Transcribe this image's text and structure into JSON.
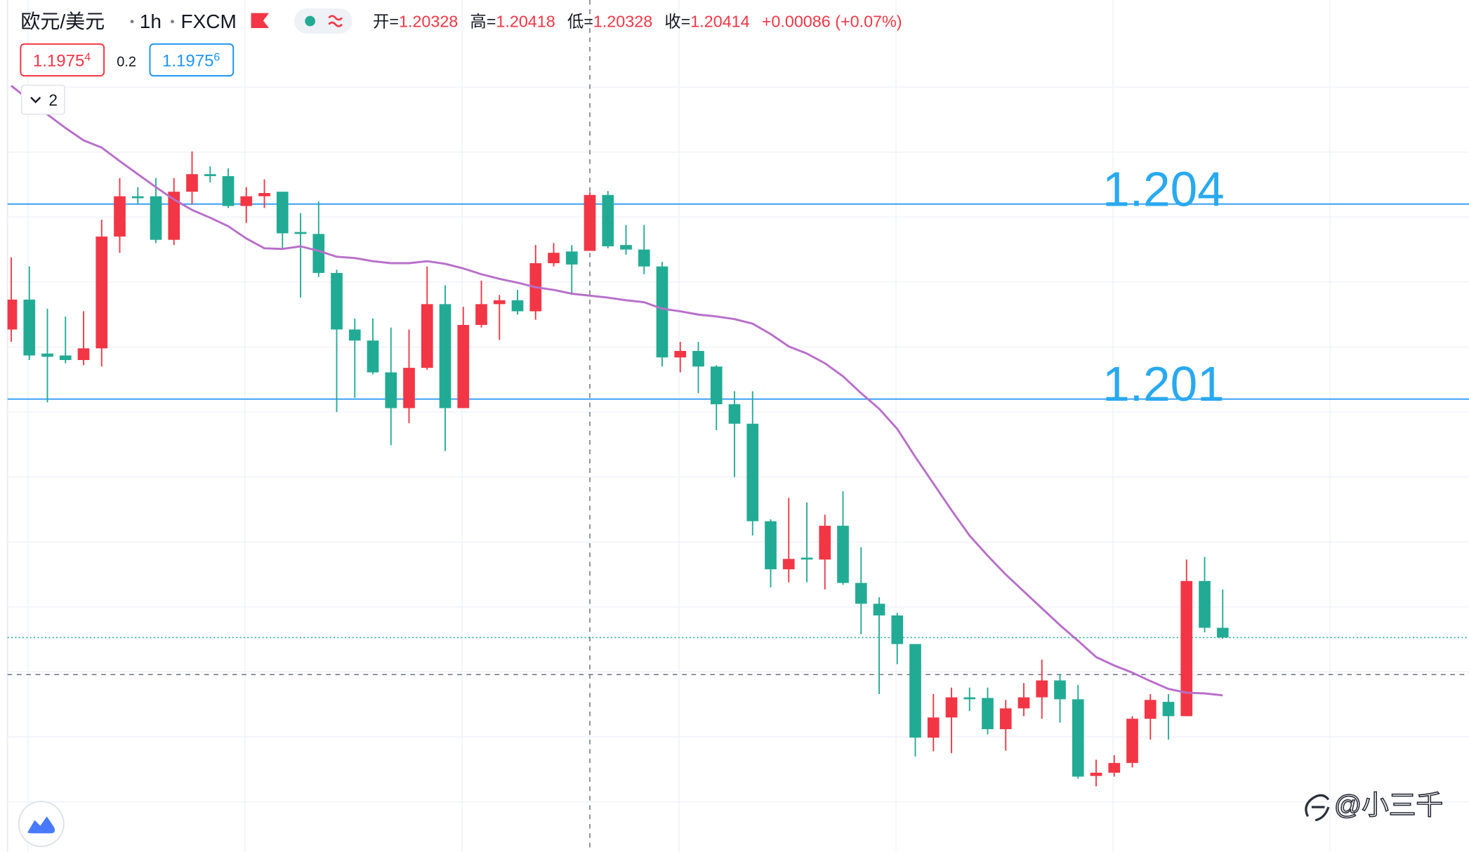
{
  "header": {
    "symbol": "欧元/美元",
    "interval": "1h",
    "source": "FXCM",
    "ohlc_labels": [
      "开=",
      "高=",
      "低=",
      "收="
    ],
    "change": "+0.00086 (+0.07%)",
    "bid": {
      "price": "1.1975",
      "pip": "4"
    },
    "spread": 0.2,
    "ask": {
      "price": "1.1975",
      "pip": "6"
    },
    "indicators_count": "2"
  },
  "watermark": "@小三千",
  "chart_data": {
    "type": "candlestick",
    "ylim": [
      1.19403,
      1.20714
    ],
    "grid": true,
    "up_color": "#f23645",
    "down_color": "#22ab94",
    "open": [
      1.20207,
      1.20253,
      1.2017,
      1.20167,
      1.2016,
      1.20178,
      1.2035,
      1.20412,
      1.20412,
      1.20345,
      1.20419,
      1.20446,
      1.20443,
      1.20397,
      1.20412,
      1.20419,
      1.20357,
      1.20354,
      1.20294,
      1.20207,
      1.2019,
      1.20141,
      1.20086,
      1.20148,
      1.20246,
      1.20086,
      1.20214,
      1.20246,
      1.20252,
      1.20235,
      1.20309,
      1.20327,
      1.20328,
      1.20414,
      1.20337,
      1.2033,
      1.20304,
      1.20164,
      1.20174,
      1.2015,
      1.20092,
      1.20062,
      1.19912,
      1.19838,
      1.19856,
      1.19853,
      1.19905,
      1.19817,
      1.19785,
      1.19767,
      1.19723,
      1.19579,
      1.1961,
      1.19641,
      1.1964,
      1.19592,
      1.19624,
      1.19641,
      1.19667,
      1.19638,
      1.1952,
      1.19525,
      1.1954,
      1.19608,
      1.19634,
      1.19612,
      1.1982,
      1.19748
    ],
    "high": [
      1.20318,
      1.20304,
      1.20239,
      1.20227,
      1.20235,
      1.20376,
      1.2044,
      1.20426,
      1.2044,
      1.2044,
      1.20481,
      1.20458,
      1.20455,
      1.20426,
      1.20438,
      1.20419,
      1.20386,
      1.20404,
      1.20299,
      1.20224,
      1.20224,
      1.2021,
      1.20207,
      1.20304,
      1.20275,
      1.20242,
      1.20282,
      1.2026,
      1.20268,
      1.20337,
      1.2034,
      1.20337,
      1.20418,
      1.2042,
      1.20368,
      1.20368,
      1.20311,
      1.20188,
      1.20188,
      1.20152,
      1.20112,
      1.20112,
      1.19915,
      1.19948,
      1.19941,
      1.19922,
      1.19958,
      1.19872,
      1.19795,
      1.19771,
      1.19723,
      1.19646,
      1.19656,
      1.19656,
      1.19656,
      1.19637,
      1.19663,
      1.19699,
      1.19677,
      1.1966,
      1.19545,
      1.19552,
      1.19612,
      1.19646,
      1.19646,
      1.19853,
      1.19857,
      1.19807
    ],
    "low": [
      1.20188,
      1.2016,
      1.20095,
      1.20155,
      1.20152,
      1.2015,
      1.20325,
      1.204,
      1.2034,
      1.20337,
      1.204,
      1.20433,
      1.20394,
      1.20371,
      1.20394,
      1.20332,
      1.20256,
      1.20288,
      1.2008,
      1.20102,
      1.20138,
      1.20029,
      1.20063,
      1.20145,
      1.2002,
      1.20086,
      1.2021,
      1.20191,
      1.2023,
      1.20222,
      1.20304,
      1.2026,
      1.20328,
      1.20332,
      1.20322,
      1.20292,
      1.2015,
      1.20141,
      1.20109,
      1.20052,
      1.1998,
      1.1989,
      1.1981,
      1.19818,
      1.19818,
      1.19807,
      1.19814,
      1.19738,
      1.19646,
      1.19692,
      1.1955,
      1.19558,
      1.19555,
      1.1962,
      1.19584,
      1.19559,
      1.19612,
      1.19608,
      1.19602,
      1.19516,
      1.19504,
      1.19519,
      1.19533,
      1.19576,
      1.19576,
      1.19612,
      1.19741,
      1.19731
    ],
    "close": [
      1.20253,
      1.20167,
      1.20165,
      1.2016,
      1.20178,
      1.2035,
      1.20412,
      1.20409,
      1.20345,
      1.20419,
      1.20446,
      1.20443,
      1.20397,
      1.20412,
      1.20417,
      1.20355,
      1.20354,
      1.20294,
      1.20207,
      1.2019,
      1.20141,
      1.20086,
      1.20148,
      1.20246,
      1.20086,
      1.20214,
      1.20246,
      1.20252,
      1.20235,
      1.20309,
      1.20325,
      1.20307,
      1.20414,
      1.20335,
      1.2033,
      1.20304,
      1.20164,
      1.20174,
      1.2015,
      1.20092,
      1.20062,
      1.19912,
      1.19838,
      1.19854,
      1.19853,
      1.19905,
      1.19817,
      1.19785,
      1.19767,
      1.19723,
      1.19579,
      1.1961,
      1.19641,
      1.19638,
      1.19592,
      1.19624,
      1.19641,
      1.19667,
      1.19638,
      1.19519,
      1.19525,
      1.1954,
      1.19608,
      1.19637,
      1.19612,
      1.1982,
      1.19748,
      1.19733
    ],
    "overlays": [
      {
        "color": "#b86fc9",
        "values": [
          1.20582,
          1.2056,
          1.20538,
          1.20517,
          1.20498,
          1.20487,
          1.20466,
          1.20446,
          1.20426,
          1.20407,
          1.20391,
          1.20379,
          1.20366,
          1.20347,
          1.20332,
          1.20331,
          1.20335,
          1.20328,
          1.20319,
          1.20317,
          1.20312,
          1.20309,
          1.20309,
          1.20312,
          1.20308,
          1.20301,
          1.20292,
          1.20285,
          1.20279,
          1.20272,
          1.20268,
          1.20262,
          1.20259,
          1.20256,
          1.20252,
          1.20249,
          1.20239,
          1.20235,
          1.2023,
          1.20227,
          1.20223,
          1.20216,
          1.202,
          1.20181,
          1.2017,
          1.20155,
          1.20135,
          1.20109,
          1.20085,
          1.20054,
          1.20011,
          1.1997,
          1.19929,
          1.1989,
          1.19859,
          1.1983,
          1.19804,
          1.19778,
          1.19752,
          1.19728,
          1.19703,
          1.1969,
          1.19679,
          1.19666,
          1.19654,
          1.19648,
          1.19647,
          1.19644
        ]
      }
    ],
    "hlines": [
      {
        "value": 1.204,
        "color": "#2196f3",
        "label_color": "#29a9f0"
      },
      {
        "value": 1.201,
        "color": "#2196f3",
        "label_color": "#29a9f0"
      }
    ],
    "crosshair": {
      "index": 32,
      "price": 1.19676
    },
    "last_price_color": "#22ab94"
  }
}
